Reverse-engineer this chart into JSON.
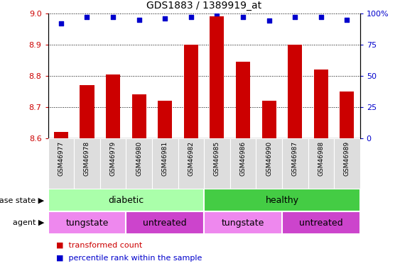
{
  "title": "GDS1883 / 1389919_at",
  "samples": [
    "GSM46977",
    "GSM46978",
    "GSM46979",
    "GSM46980",
    "GSM46981",
    "GSM46982",
    "GSM46985",
    "GSM46986",
    "GSM46990",
    "GSM46987",
    "GSM46988",
    "GSM46989"
  ],
  "transformed_count": [
    8.62,
    8.77,
    8.805,
    8.74,
    8.72,
    8.9,
    8.99,
    8.845,
    8.72,
    8.9,
    8.82,
    8.75
  ],
  "percentile_rank": [
    92,
    97,
    97,
    95,
    96,
    97,
    100,
    97,
    94,
    97,
    97,
    95
  ],
  "y_min": 8.6,
  "y_max": 9.0,
  "y_ticks": [
    8.6,
    8.7,
    8.8,
    8.9,
    9.0
  ],
  "y2_ticks": [
    0,
    25,
    50,
    75,
    100
  ],
  "bar_color": "#cc0000",
  "dot_color": "#0000cc",
  "bar_width": 0.55,
  "disease_color_diabetic": "#aaffaa",
  "disease_color_healthy": "#44cc44",
  "agent_color_tungstate": "#ee88ee",
  "agent_color_untreated": "#cc44cc",
  "background_color": "#ffffff",
  "tick_label_color_left": "#cc0000",
  "tick_label_color_right": "#0000cc",
  "sample_bg_color": "#dddddd"
}
